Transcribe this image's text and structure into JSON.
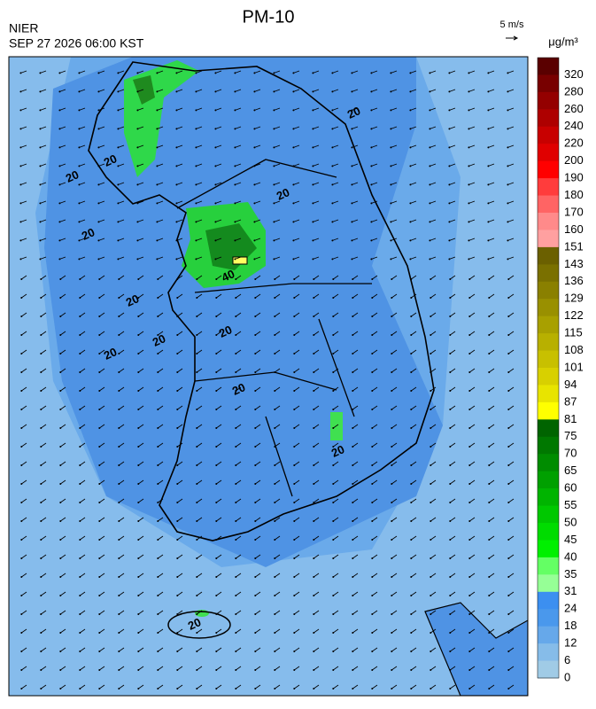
{
  "header": {
    "title": "PM-10",
    "agency": "NIER",
    "timestamp": "SEP 27 2026 06:00 KST",
    "wind_scale": "5 m/s"
  },
  "colorbar": {
    "unit": "μg/m³",
    "labels": [
      320,
      280,
      260,
      240,
      220,
      200,
      190,
      180,
      170,
      160,
      151,
      143,
      136,
      129,
      122,
      115,
      108,
      101,
      94,
      87,
      81,
      75,
      70,
      65,
      60,
      55,
      50,
      45,
      40,
      35,
      31,
      24,
      18,
      12,
      6,
      0
    ],
    "colors": [
      "#5a0000",
      "#780000",
      "#940000",
      "#ae0000",
      "#c80000",
      "#e00000",
      "#ff0000",
      "#ff3c3c",
      "#ff6464",
      "#ff8a8a",
      "#ffa0a0",
      "#6b6000",
      "#7a7000",
      "#8a8000",
      "#999000",
      "#a8a000",
      "#b8b000",
      "#c8c000",
      "#d8d000",
      "#e8e400",
      "#ffff00",
      "#006400",
      "#007800",
      "#008c00",
      "#00a000",
      "#00b400",
      "#00c800",
      "#00dc00",
      "#00f000",
      "#64ff64",
      "#96ff96",
      "#3c8ff0",
      "#4a98ec",
      "#66a8ea",
      "#86bce9",
      "#a0cbe6"
    ]
  },
  "map": {
    "contour_labels": [
      "20",
      "20",
      "20",
      "20",
      "20",
      "20",
      "20",
      "20",
      "40",
      "20",
      "20",
      "20",
      "20"
    ]
  }
}
